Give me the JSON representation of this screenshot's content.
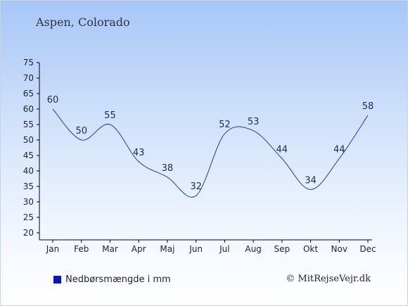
{
  "header": {
    "location": "Aspen, Colorado"
  },
  "legend": {
    "label": "Nedbørsmængde i mm",
    "color": "#0a1aa8"
  },
  "credit": "© MitRejseVejr.dk",
  "chart_data": {
    "type": "line",
    "categories": [
      "Jan",
      "Feb",
      "Mar",
      "Apr",
      "Maj",
      "Jun",
      "Jul",
      "Aug",
      "Sep",
      "Okt",
      "Nov",
      "Dec"
    ],
    "series": [
      {
        "name": "Nedbørsmængde i mm",
        "values": [
          60,
          50,
          55,
          43,
          38,
          32,
          52,
          53,
          44,
          34,
          44,
          58
        ],
        "color": "#2a3ab0"
      }
    ],
    "ylim": [
      20,
      75
    ],
    "yticks": [
      20,
      25,
      30,
      35,
      40,
      45,
      50,
      55,
      60,
      65,
      70,
      75
    ],
    "grid": false,
    "legend_position": "bottom-left"
  }
}
